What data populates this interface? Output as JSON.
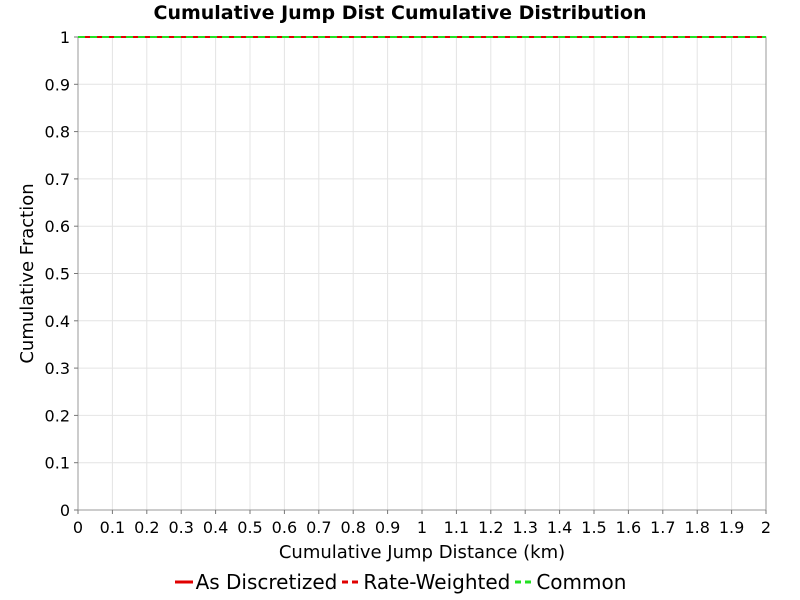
{
  "chart_data": {
    "type": "line",
    "title": "Cumulative Jump Dist Cumulative Distribution",
    "xlabel": "Cumulative Jump Distance (km)",
    "ylabel": "Cumulative Fraction",
    "xlim": [
      0,
      2
    ],
    "ylim": [
      0,
      1
    ],
    "x_ticks": [
      "0",
      "0.1",
      "0.2",
      "0.3",
      "0.4",
      "0.5",
      "0.6",
      "0.7",
      "0.8",
      "0.9",
      "1",
      "1.1",
      "1.2",
      "1.3",
      "1.4",
      "1.5",
      "1.6",
      "1.7",
      "1.8",
      "1.9",
      "2"
    ],
    "y_ticks": [
      "0",
      "0.1",
      "0.2",
      "0.3",
      "0.4",
      "0.5",
      "0.6",
      "0.7",
      "0.8",
      "0.9",
      "1"
    ],
    "grid": true,
    "legend_position": "bottom",
    "series": [
      {
        "name": "As Discretized",
        "color": "#e00000",
        "style": "solid",
        "x": [
          0,
          2
        ],
        "y": [
          1,
          1
        ]
      },
      {
        "name": "Rate-Weighted",
        "color": "#e00000",
        "style": "dashed",
        "x": [
          0,
          2
        ],
        "y": [
          1,
          1
        ]
      },
      {
        "name": "Common",
        "color": "#22e022",
        "style": "dashed",
        "x": [
          0,
          2
        ],
        "y": [
          1,
          1
        ]
      }
    ]
  }
}
